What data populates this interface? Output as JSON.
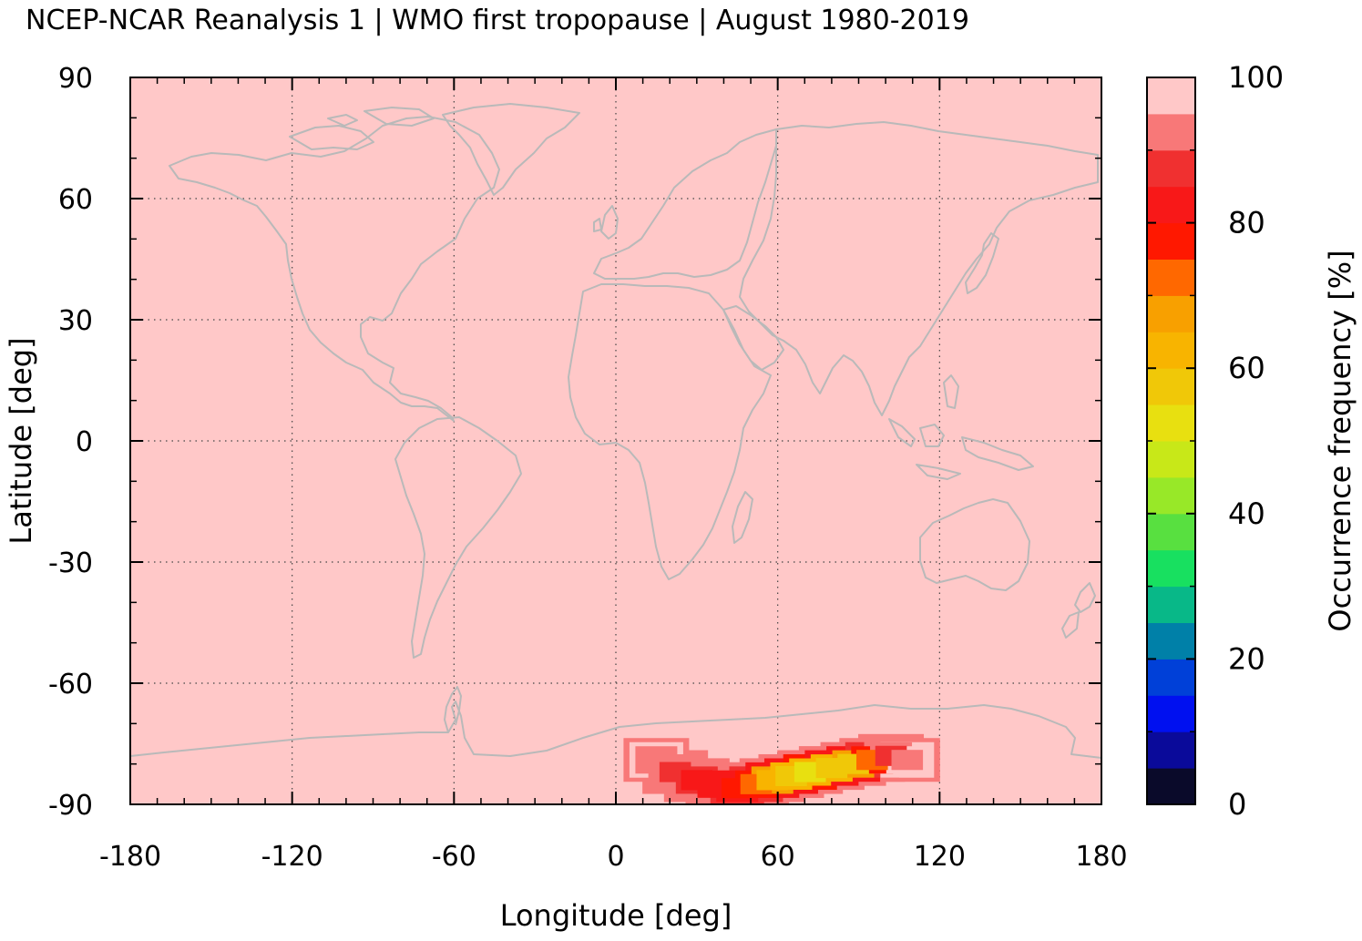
{
  "title": "NCEP-NCAR Reanalysis 1 | WMO first tropopause | August 1980-2019",
  "chart_data": {
    "type": "heatmap",
    "title": "NCEP-NCAR Reanalysis 1 | WMO first tropopause | August 1980-2019",
    "xlabel": "Longitude [deg]",
    "ylabel": "Latitude [deg]",
    "xlim": [
      -180,
      180
    ],
    "ylim": [
      -90,
      90
    ],
    "xticks": [
      -180,
      -120,
      -60,
      0,
      60,
      120,
      180
    ],
    "yticks": [
      90,
      60,
      30,
      0,
      -30,
      -60,
      -90
    ],
    "grid": true,
    "background_value": 100,
    "colorbar": {
      "label": "Occurrence frequency [%]",
      "range": [
        0,
        100
      ],
      "ticks": [
        0,
        20,
        40,
        60,
        80,
        100
      ],
      "levels": [
        {
          "min": 0,
          "max": 5,
          "color": "#0a0a2a"
        },
        {
          "min": 5,
          "max": 10,
          "color": "#0a0a9a"
        },
        {
          "min": 10,
          "max": 15,
          "color": "#0010f0"
        },
        {
          "min": 15,
          "max": 20,
          "color": "#0040d8"
        },
        {
          "min": 20,
          "max": 25,
          "color": "#0080a8"
        },
        {
          "min": 25,
          "max": 30,
          "color": "#08b888"
        },
        {
          "min": 30,
          "max": 35,
          "color": "#18e060"
        },
        {
          "min": 35,
          "max": 40,
          "color": "#58e040"
        },
        {
          "min": 40,
          "max": 45,
          "color": "#98e828"
        },
        {
          "min": 45,
          "max": 50,
          "color": "#c8e818"
        },
        {
          "min": 50,
          "max": 55,
          "color": "#e8e010"
        },
        {
          "min": 55,
          "max": 60,
          "color": "#f0c808"
        },
        {
          "min": 60,
          "max": 65,
          "color": "#f8b400"
        },
        {
          "min": 65,
          "max": 70,
          "color": "#f8a000"
        },
        {
          "min": 70,
          "max": 75,
          "color": "#ff6800"
        },
        {
          "min": 75,
          "max": 80,
          "color": "#ff1800"
        },
        {
          "min": 80,
          "max": 85,
          "color": "#f81818"
        },
        {
          "min": 85,
          "max": 90,
          "color": "#f03030"
        },
        {
          "min": 90,
          "max": 95,
          "color": "#f87878"
        },
        {
          "min": 95,
          "max": 100,
          "color": "#ffc8c8"
        }
      ]
    },
    "anomaly_region": [
      {
        "lon": 15,
        "lat": -79,
        "value": 93
      },
      {
        "lon": 22,
        "lat": -82,
        "value": 88
      },
      {
        "lon": 30,
        "lat": -84,
        "value": 84
      },
      {
        "lon": 38,
        "lat": -85,
        "value": 80
      },
      {
        "lon": 45,
        "lat": -86,
        "value": 76
      },
      {
        "lon": 52,
        "lat": -85,
        "value": 70
      },
      {
        "lon": 58,
        "lat": -84,
        "value": 62
      },
      {
        "lon": 65,
        "lat": -83,
        "value": 56
      },
      {
        "lon": 72,
        "lat": -82,
        "value": 54
      },
      {
        "lon": 80,
        "lat": -81,
        "value": 56
      },
      {
        "lon": 88,
        "lat": -80,
        "value": 58
      },
      {
        "lon": 95,
        "lat": -79,
        "value": 70
      },
      {
        "lon": 102,
        "lat": -78,
        "value": 88
      },
      {
        "lon": 108,
        "lat": -79,
        "value": 94
      }
    ],
    "coastlines": "world-coastline"
  }
}
